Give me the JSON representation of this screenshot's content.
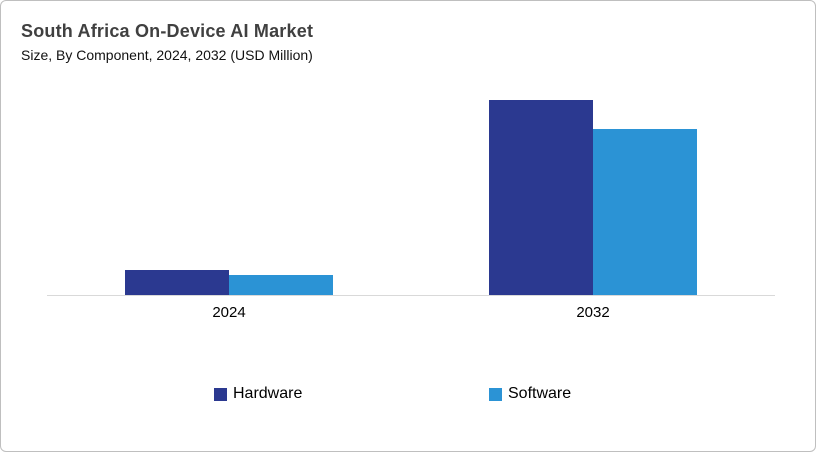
{
  "header": {
    "title": "South Africa On-Device AI Market",
    "subtitle": "Size, By Component, 2024, 2032 (USD Million)"
  },
  "chart_data": {
    "type": "bar",
    "title": "South Africa On-Device AI Market",
    "subtitle": "Size, By Component, 2024, 2032 (USD Million)",
    "units": "USD Million",
    "categories": [
      "2024",
      "2032"
    ],
    "series": [
      {
        "name": "Hardware",
        "color": "#2B3990",
        "values": [
          12.8,
          100
        ]
      },
      {
        "name": "Software",
        "color": "#2B93D5",
        "values": [
          10.3,
          85.1
        ]
      }
    ],
    "value_axis_visible": false,
    "gridlines": false,
    "legend_position": "bottom",
    "note": "Bars carry no data labels; values are estimated relative heights normalized to the tallest bar (Hardware 2032) = 100."
  },
  "colors": {
    "hardware": "#2B3990",
    "software": "#2B93D5",
    "axis_line": "#D9D9D9",
    "title_text": "#404040",
    "card_border": "#BFBFBF"
  }
}
